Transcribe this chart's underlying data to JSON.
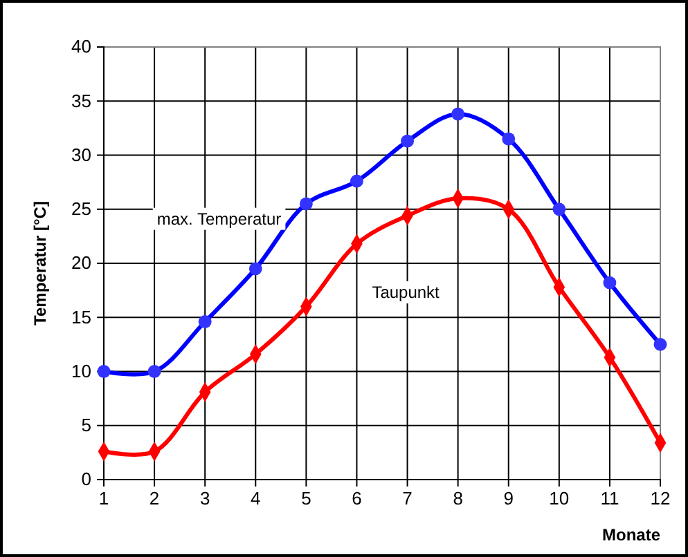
{
  "chart_data": {
    "type": "line",
    "xlabel": "Monate",
    "ylabel": "Temperatur [°C]",
    "x": [
      1,
      2,
      3,
      4,
      5,
      6,
      7,
      8,
      9,
      10,
      11,
      12
    ],
    "xlim": [
      1,
      12
    ],
    "xticks": [
      1,
      2,
      3,
      4,
      5,
      6,
      7,
      8,
      9,
      10,
      11,
      12
    ],
    "ylim": [
      0,
      40
    ],
    "yticks": [
      0,
      5,
      10,
      15,
      20,
      25,
      30,
      35,
      40
    ],
    "grid": true,
    "series": [
      {
        "name": "max. Temperatur",
        "color": "#0000ff",
        "marker": "circle",
        "values": [
          10,
          10,
          14.6,
          19.5,
          25.5,
          27.6,
          31.3,
          33.8,
          31.5,
          25,
          18.2,
          12.5
        ]
      },
      {
        "name": "Taupunkt",
        "color": "#ff0000",
        "marker": "diamond",
        "values": [
          2.6,
          2.6,
          8.1,
          11.6,
          16,
          21.8,
          24.4,
          26,
          25,
          17.8,
          11.3,
          3.4
        ]
      }
    ]
  }
}
